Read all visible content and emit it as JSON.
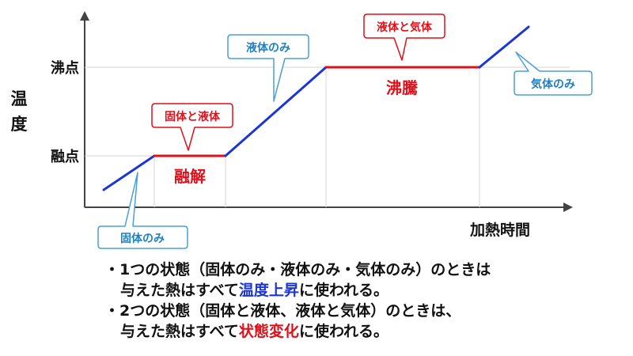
{
  "axes": {
    "y_label_chars": [
      "温",
      "度"
    ],
    "x_label": "加熱時間",
    "y_ticks": {
      "boiling": "沸点",
      "melting": "融点"
    }
  },
  "phase_labels": {
    "melting_process": "融解",
    "boiling_process": "沸騰"
  },
  "callouts": {
    "solid": "固体のみ",
    "solid_liquid": "固体と液体",
    "liquid": "液体のみ",
    "liquid_gas": "液体と気体",
    "gas": "気体のみ"
  },
  "colors": {
    "temperature_rise": "#1c35d6",
    "state_change": "#e0101a",
    "callout_blue": "#4a9fd6",
    "callout_red": "#e0101a"
  },
  "notes": [
    {
      "line1": "・1つの状態（固体のみ・液体のみ・気体のみ）のときは",
      "line2_prefix": "与えた熱はすべて",
      "line2_emph": "温度上昇",
      "line2_suffix": "に使われる。"
    },
    {
      "line1": "・2つの状態（固体と液体、液体と気体）のときは、",
      "line2_prefix": "与えた熱はすべて",
      "line2_emph": "状態変化",
      "line2_suffix": "に使われる。"
    }
  ]
}
